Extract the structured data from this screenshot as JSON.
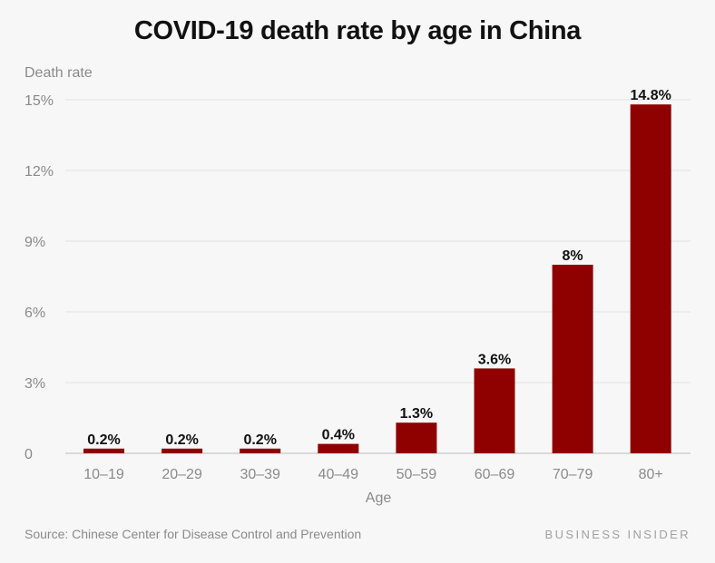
{
  "chart_data": {
    "type": "bar",
    "title": "COVID-19 death rate by age in China",
    "ylabel": "Death rate",
    "xlabel": "Age",
    "categories": [
      "10–19",
      "20–29",
      "30–39",
      "40–49",
      "50–59",
      "60–69",
      "70–79",
      "80+"
    ],
    "values": [
      0.2,
      0.2,
      0.2,
      0.4,
      1.3,
      3.6,
      8.0,
      14.8
    ],
    "value_labels": [
      "0.2%",
      "0.2%",
      "0.2%",
      "0.4%",
      "1.3%",
      "3.6%",
      "8%",
      "14.8%"
    ],
    "ylim": [
      0,
      15
    ],
    "yticks": [
      0,
      3,
      6,
      9,
      12,
      15
    ],
    "ytick_labels": [
      "0",
      "3%",
      "6%",
      "9%",
      "12%",
      "15%"
    ],
    "grid": true,
    "legend": "none",
    "bar_color": "#8f0000"
  },
  "footer": {
    "source_label": "Source:",
    "source_text": " Chinese Center for Disease Control and Prevention",
    "brand": "BUSINESS INSIDER"
  }
}
